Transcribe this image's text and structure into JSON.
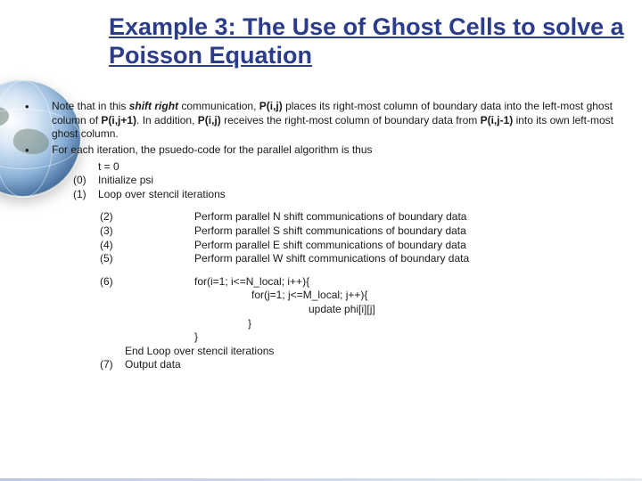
{
  "title": "Example 3: The Use of Ghost Cells to solve a Poisson Equation",
  "bullets": {
    "b1_pre": "Note that in this ",
    "b1_shift": "shift right",
    "b1_comm": " communication, ",
    "b1_p1": "P(i,j)",
    "b1_mid1": " places its right-most column of boundary data into the left-most ghost column of ",
    "b1_p2": "P(i,j+1)",
    "b1_mid2": ". In addition, ",
    "b1_p3": "P(i,j)",
    "b1_mid3": " receives the right-most column of boundary data from ",
    "b1_p4": "P(i,j-1)",
    "b1_end": " into its own left-most ghost column.",
    "b2": "For each iteration, the psuedo-code for the parallel algorithm is thus"
  },
  "pseudo_head": {
    "t0": "t = 0",
    "n0": "(0)",
    "l0": "Initialize psi",
    "n1": "(1)",
    "l1": "Loop over stencil iterations"
  },
  "shifts": {
    "n2": "(2)",
    "l2": "Perform parallel N shift communications of boundary data",
    "n3": "(3)",
    "l3": "Perform parallel S shift communications of boundary data",
    "n4": "(4)",
    "l4": "Perform parallel E shift communications of boundary data",
    "n5": "(5)",
    "l5": "Perform parallel W shift communications of boundary data"
  },
  "code": {
    "n6": "(6)",
    "c1": "for(i=1; i<=N_local; i++){",
    "c2": "for(j=1; j<=M_local; j++){",
    "c3": "update phi[i][j]",
    "c4": "}",
    "c5": "}"
  },
  "tail": {
    "end_loop": "End Loop over stencil iterations",
    "n7": "(7)",
    "l7": "Output data"
  },
  "colors": {
    "title": "#2a3c8a",
    "text": "#1a1a1a",
    "background": "#ffffff"
  }
}
